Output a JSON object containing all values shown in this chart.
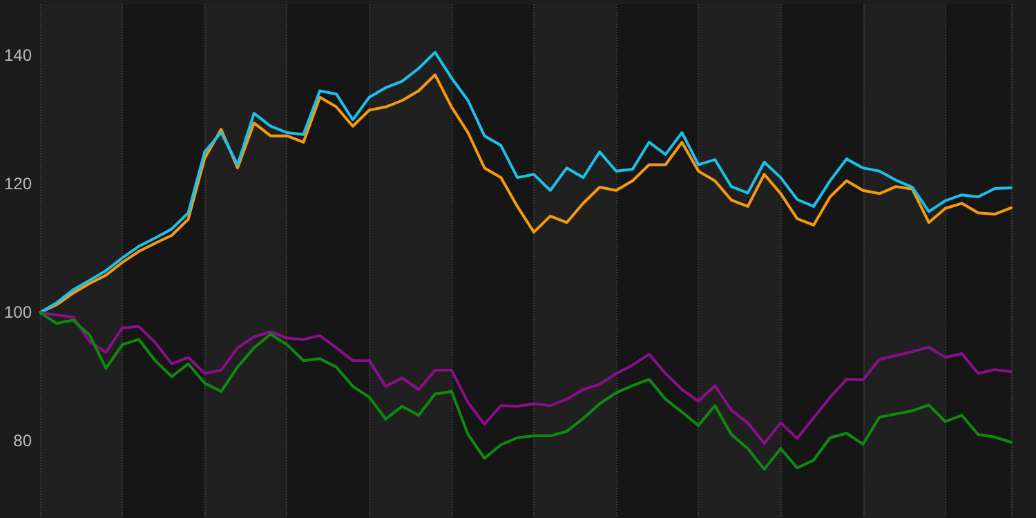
{
  "chart_data": {
    "type": "line",
    "categories": [
      null,
      null,
      null,
      null,
      null,
      null,
      null,
      null,
      null,
      null,
      null,
      null,
      null,
      null,
      null,
      null,
      null,
      null,
      null,
      null,
      null,
      null,
      null,
      null,
      null,
      null,
      null,
      null,
      null,
      null,
      null,
      null,
      null,
      null,
      null,
      null,
      null,
      null,
      null,
      null,
      null,
      null,
      null,
      null,
      null,
      null,
      null,
      null,
      null,
      null,
      null,
      null,
      null,
      null,
      null,
      null,
      null,
      null,
      null,
      null
    ],
    "series": [
      {
        "color": "#f59a0f",
        "values": [
          100,
          101.2,
          103,
          104.5,
          105.8,
          107.8,
          109.5,
          110.8,
          112,
          114.5,
          124,
          128.5,
          122.5,
          129.5,
          127.5,
          127.5,
          126.5,
          133.5,
          132,
          129,
          131.5,
          132,
          133,
          134.5,
          137,
          132,
          128,
          122.5,
          121,
          116.5,
          112.5,
          115,
          114,
          117,
          119.5,
          119,
          120.5,
          123,
          123,
          126.5,
          122,
          120.5,
          117.5,
          116.5,
          121.5,
          118.5,
          114.6,
          113.6,
          118,
          120.5,
          119,
          118.5,
          119.6,
          119.2,
          114,
          116.2,
          117,
          115.5,
          115.3,
          116.3
        ]
      },
      {
        "color": "#1ec0e8",
        "values": [
          100,
          101.5,
          103.5,
          105,
          106.5,
          108.5,
          110.3,
          111.6,
          113,
          115.5,
          125,
          128,
          123,
          131,
          129,
          128,
          127.7,
          134.5,
          134,
          130,
          133.5,
          135,
          136,
          138,
          140.5,
          136.5,
          133,
          127.5,
          126,
          121,
          121.5,
          119,
          122.5,
          121,
          125,
          122,
          122.3,
          126.5,
          124.6,
          128,
          123,
          123.8,
          119.6,
          118.6,
          123.4,
          121,
          117.6,
          116.5,
          120.5,
          123.9,
          122.5,
          122,
          120.6,
          119.5,
          115.7,
          117.4,
          118.3,
          118,
          119.3,
          119.4
        ]
      },
      {
        "color": "#8b0f8b",
        "values": [
          100,
          99.6,
          99.3,
          95.5,
          93.8,
          97.6,
          97.8,
          95.3,
          92,
          93,
          90.5,
          91,
          94.5,
          96.2,
          97,
          96,
          95.8,
          96.4,
          94.5,
          92.5,
          92.5,
          88.5,
          89.8,
          88,
          91,
          91,
          86,
          82.6,
          85.5,
          85.4,
          85.8,
          85.5,
          86.5,
          88,
          88.8,
          90.5,
          91.8,
          93.5,
          90.5,
          88,
          86.2,
          88.6,
          84.8,
          82.8,
          79.6,
          82.8,
          80.4,
          83.6,
          86.8,
          89.6,
          89.5,
          92.7,
          93.3,
          93.9,
          94.6,
          93,
          93.6,
          90.5,
          91.1,
          90.8
        ]
      },
      {
        "color": "#0f8a0f",
        "values": [
          100,
          98.3,
          98.8,
          96.5,
          91.3,
          95,
          95.8,
          92.5,
          90,
          92,
          89,
          87.7,
          91.5,
          94.5,
          96.6,
          95,
          92.5,
          92.8,
          91.5,
          88.5,
          86.8,
          83.4,
          85.4,
          84,
          87.3,
          87.7,
          81,
          77.3,
          79.4,
          80.5,
          80.8,
          80.8,
          81.5,
          83.5,
          85.8,
          87.5,
          88.6,
          89.6,
          86.5,
          84.5,
          82.4,
          85.5,
          81,
          78.8,
          75.6,
          78.8,
          75.8,
          77,
          80.5,
          81.2,
          79.5,
          83.7,
          84.2,
          84.7,
          85.6,
          83,
          84,
          81,
          80.6,
          79.8
        ]
      }
    ],
    "ylim": [
      68,
      148
    ],
    "yticks": [
      80,
      100,
      120,
      140
    ],
    "grid": true,
    "tick_labels": "y",
    "marker": "none",
    "line_style": "solid"
  }
}
